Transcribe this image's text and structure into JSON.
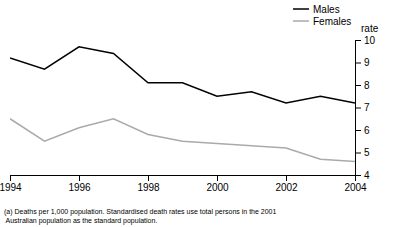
{
  "chart_data": {
    "type": "line",
    "x": [
      1994,
      1995,
      1996,
      1997,
      1998,
      1999,
      2000,
      2001,
      2002,
      2003,
      2004
    ],
    "series": [
      {
        "name": "Males",
        "color": "#000000",
        "values": [
          9.2,
          8.7,
          9.7,
          9.4,
          8.1,
          8.1,
          7.5,
          7.7,
          7.2,
          7.5,
          7.2
        ]
      },
      {
        "name": "Females",
        "color": "#aaaaaa",
        "values": [
          6.5,
          5.5,
          6.1,
          6.5,
          5.8,
          5.5,
          5.4,
          5.3,
          5.2,
          4.7,
          4.6
        ]
      }
    ],
    "xlim": [
      1994,
      2004
    ],
    "xticks": [
      1994,
      1996,
      1998,
      2000,
      2002,
      2004
    ],
    "ylim": [
      4,
      10
    ],
    "yticks": [
      4,
      5,
      6,
      7,
      8,
      9,
      10
    ],
    "ylabel": "rate",
    "annotations": [
      "(a) Deaths per 1,000 population. Standardised death rates use total persons in the 2001\n Australian population as the standard population."
    ],
    "legend": "upper right",
    "grid": false
  }
}
